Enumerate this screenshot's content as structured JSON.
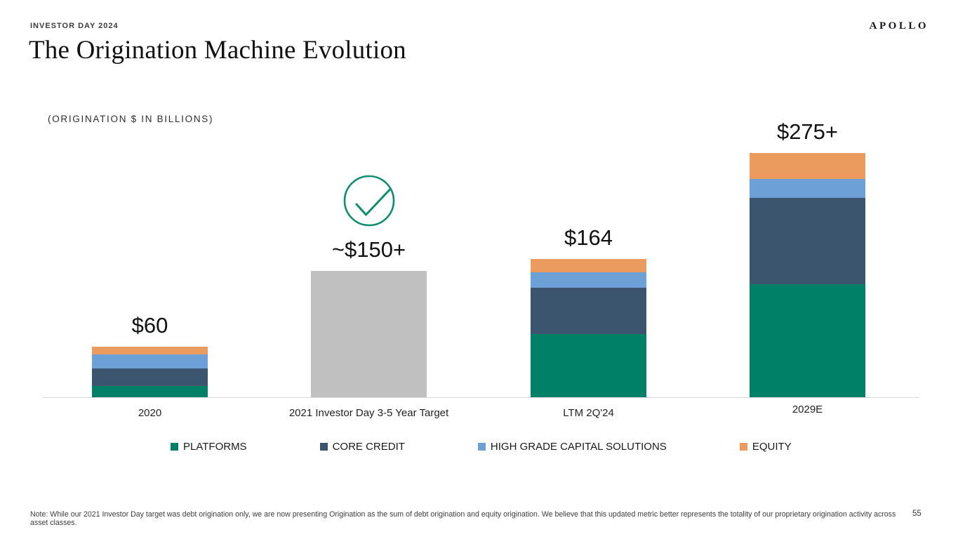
{
  "header": {
    "eyebrow": "INVESTOR DAY 2024",
    "title": "The Origination Machine Evolution",
    "logo": "APOLLO"
  },
  "chart": {
    "subtitle": "(ORIGINATION $ IN BILLIONS)"
  },
  "chart_data": {
    "type": "bar",
    "stacked": true,
    "unit": "USD billions",
    "title": "The Origination Machine Evolution",
    "subtitle": "(ORIGINATION $ IN BILLIONS)",
    "grid": false,
    "y_axis_visible": false,
    "categories": [
      "2020",
      "2021 Investor Day 3-5 Year Target",
      "LTM 2Q'24",
      "2029E"
    ],
    "bar_totals_labeled": [
      "$60",
      "~$150+",
      "$164",
      "$275+"
    ],
    "series": [
      {
        "name": "PLATFORMS",
        "values": [
          13,
          0,
          75,
          134
        ]
      },
      {
        "name": "CORE CREDIT",
        "values": [
          21,
          0,
          55,
          103
        ]
      },
      {
        "name": "HIGH GRADE CAPITAL SOLUTIONS",
        "values": [
          17,
          0,
          18,
          22
        ]
      },
      {
        "name": "EQUITY",
        "values": [
          9,
          0,
          16,
          31
        ]
      },
      {
        "name": "TARGET",
        "values": [
          0,
          150,
          0,
          0
        ]
      }
    ],
    "bars": [
      {
        "category": "2020",
        "label": "$60",
        "total": 60,
        "segments": [
          {
            "name": "PLATFORMS",
            "value": 13
          },
          {
            "name": "CORE CREDIT",
            "value": 21
          },
          {
            "name": "HIGH GRADE CAPITAL SOLUTIONS",
            "value": 17
          },
          {
            "name": "EQUITY",
            "value": 9
          }
        ],
        "check": false
      },
      {
        "category": "2021 Investor Day 3-5 Year Target",
        "label": "~$150+",
        "total": 150,
        "segments": [
          {
            "name": "TARGET",
            "value": 150
          }
        ],
        "check": true
      },
      {
        "category": "LTM 2Q'24",
        "label": "$164",
        "total": 164,
        "segments": [
          {
            "name": "PLATFORMS",
            "value": 75
          },
          {
            "name": "CORE CREDIT",
            "value": 55
          },
          {
            "name": "HIGH GRADE CAPITAL SOLUTIONS",
            "value": 18
          },
          {
            "name": "EQUITY",
            "value": 16
          }
        ],
        "check": false
      },
      {
        "category": "2029E",
        "label": "$275+",
        "total": 290,
        "segments": [
          {
            "name": "PLATFORMS",
            "value": 134
          },
          {
            "name": "CORE CREDIT",
            "value": 103
          },
          {
            "name": "HIGH GRADE CAPITAL SOLUTIONS",
            "value": 22
          },
          {
            "name": "EQUITY",
            "value": 31
          }
        ],
        "check": false
      }
    ],
    "legend_position": "bottom",
    "legend": [
      {
        "label": "PLATFORMS",
        "color": "#008066"
      },
      {
        "label": "CORE CREDIT",
        "color": "#3B556F"
      },
      {
        "label": "HIGH GRADE CAPITAL SOLUTIONS",
        "color": "#6CA0D6"
      },
      {
        "label": "EQUITY",
        "color": "#EC9B5F"
      }
    ]
  },
  "colors": {
    "PLATFORMS": "#008066",
    "CORE CREDIT": "#3B556F",
    "HIGH GRADE CAPITAL SOLUTIONS": "#6CA0D6",
    "EQUITY": "#EC9B5F",
    "TARGET": "#C1C0C0",
    "check_green": "#0E8C6E",
    "axis_line": "#D9D9D9"
  },
  "footer": {
    "note": "Note: While our 2021 Investor Day target was debt origination only, we are now presenting Origination as the sum of debt origination and equity origination. We believe that this updated metric better represents the totality of our proprietary origination activity across asset classes.",
    "page_number": "55"
  }
}
